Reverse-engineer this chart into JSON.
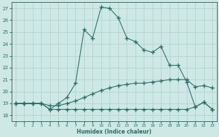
{
  "xlabel": "Humidex (Indice chaleur)",
  "background_color": "#cde8e5",
  "grid_color": "#aacfcc",
  "line_color": "#2e6b65",
  "xlim": [
    -0.5,
    23.5
  ],
  "ylim": [
    17.5,
    27.5
  ],
  "xticks": [
    0,
    1,
    2,
    3,
    4,
    5,
    6,
    7,
    8,
    9,
    10,
    11,
    12,
    13,
    14,
    15,
    16,
    17,
    18,
    19,
    20,
    21,
    22,
    23
  ],
  "yticks": [
    18,
    19,
    20,
    21,
    22,
    23,
    24,
    25,
    26,
    27
  ],
  "line1_x": [
    0,
    1,
    2,
    3,
    4,
    5,
    6,
    7,
    8,
    9,
    10,
    11,
    12,
    13,
    14,
    15,
    16,
    17,
    18,
    19,
    20,
    21,
    22,
    23
  ],
  "line1_y": [
    19,
    19,
    19,
    19,
    18.5,
    19,
    19.5,
    20.7,
    25.2,
    24.5,
    27.1,
    27.0,
    26.2,
    24.5,
    24.2,
    23.5,
    23.3,
    23.8,
    22.2,
    22.2,
    20.8,
    18.7,
    19.1,
    18.5
  ],
  "line2_x": [
    0,
    1,
    2,
    3,
    4,
    5,
    6,
    7,
    8,
    9,
    10,
    11,
    12,
    13,
    14,
    15,
    16,
    17,
    18,
    19,
    20,
    21,
    22,
    23
  ],
  "line2_y": [
    19,
    19,
    19,
    19,
    18.8,
    18.8,
    19.0,
    19.2,
    19.5,
    19.8,
    20.1,
    20.3,
    20.5,
    20.6,
    20.7,
    20.7,
    20.8,
    20.9,
    21.0,
    21.0,
    21.0,
    20.4,
    20.5,
    20.3
  ],
  "line3_x": [
    0,
    1,
    2,
    3,
    4,
    5,
    6,
    7,
    8,
    9,
    10,
    11,
    12,
    13,
    14,
    15,
    16,
    17,
    18,
    19,
    20,
    21,
    22,
    23
  ],
  "line3_y": [
    19.0,
    19.0,
    19.0,
    19.0,
    18.5,
    18.5,
    18.5,
    18.5,
    18.5,
    18.5,
    18.5,
    18.5,
    18.5,
    18.5,
    18.5,
    18.5,
    18.5,
    18.5,
    18.5,
    18.5,
    18.5,
    18.7,
    19.1,
    18.5
  ]
}
